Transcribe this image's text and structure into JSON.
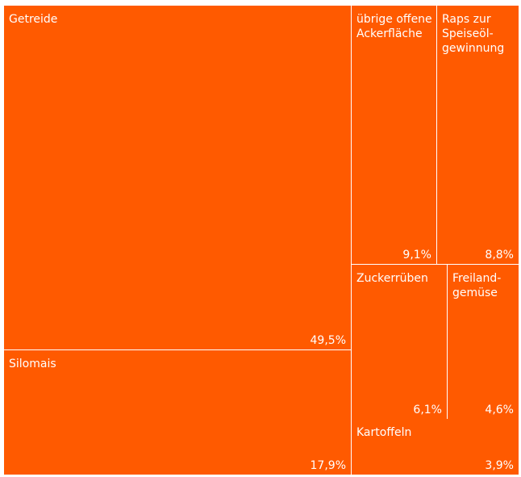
{
  "chart_data": {
    "type": "treemap",
    "color": "#ff5a00",
    "label_color": "#ffffff",
    "items": [
      {
        "id": "getreide",
        "label": "Getreide",
        "value_label": "49,5%",
        "value": 49.5
      },
      {
        "id": "silomais",
        "label": "Silomais",
        "value_label": "17,9%",
        "value": 17.9
      },
      {
        "id": "uebrige",
        "label": "übrige offene\nAckerfläche",
        "value_label": "9,1%",
        "value": 9.1
      },
      {
        "id": "raps",
        "label": "Raps zur\nSpeiseöl-\ngewinnung",
        "value_label": "8,8%",
        "value": 8.8
      },
      {
        "id": "zuckerrueben",
        "label": "Zuckerrüben",
        "value_label": "6,1%",
        "value": 6.1
      },
      {
        "id": "freiland",
        "label": "Freiland-\ngemüse",
        "value_label": "4,6%",
        "value": 4.6
      },
      {
        "id": "kartoffeln",
        "label": "Kartoffeln",
        "value_label": "3,9%",
        "value": 3.9
      }
    ]
  }
}
